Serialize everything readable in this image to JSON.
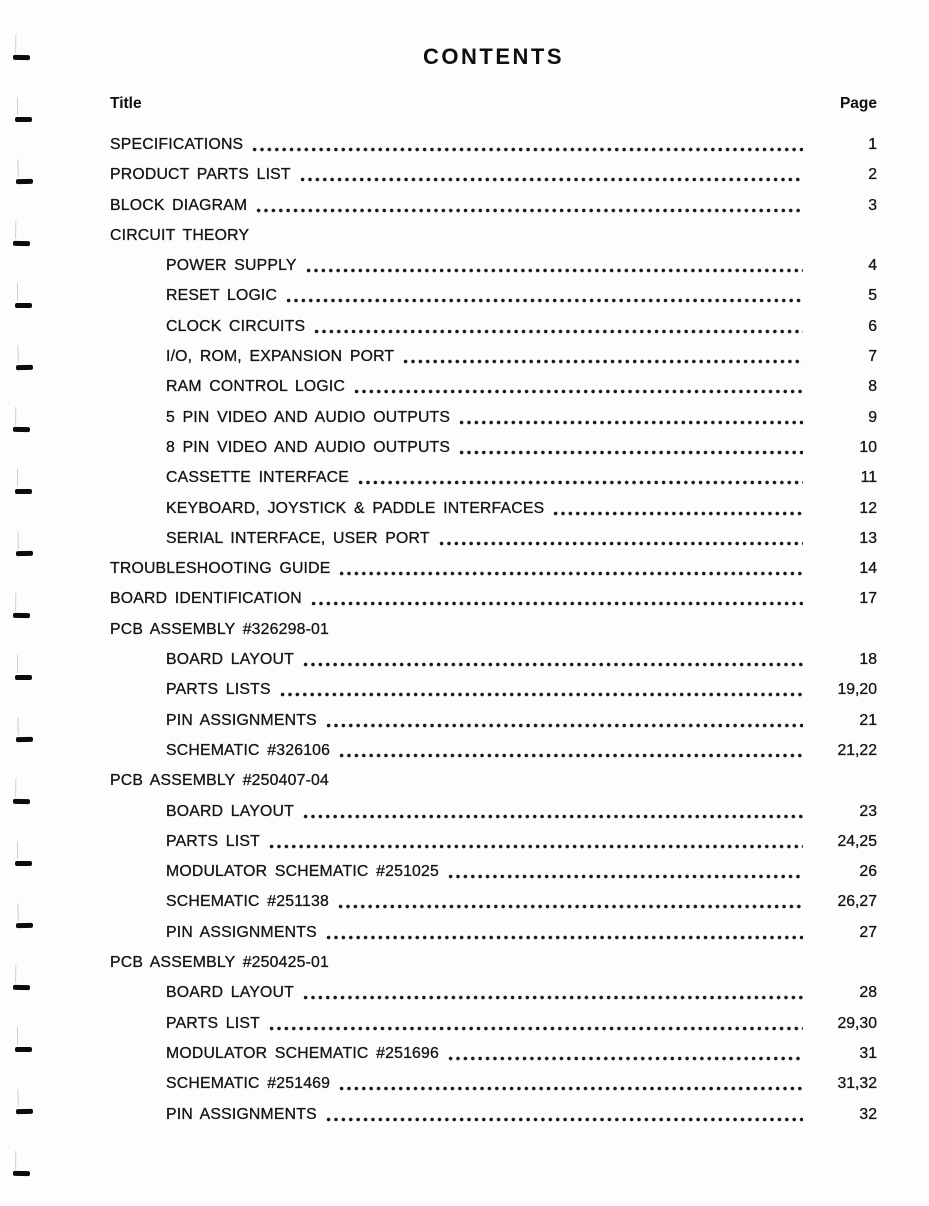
{
  "header": {
    "title": "CONTENTS",
    "columns": {
      "title": "Title",
      "page": "Page"
    }
  },
  "toc": {
    "entries": [
      {
        "label": "SPECIFICATIONS",
        "page": "1",
        "indent": 0
      },
      {
        "label": "PRODUCT PARTS LIST",
        "page": "2",
        "indent": 0
      },
      {
        "label": "BLOCK DIAGRAM",
        "page": "3",
        "indent": 0
      },
      {
        "label": "CIRCUIT THEORY",
        "page": "",
        "indent": 0
      },
      {
        "label": "POWER SUPPLY",
        "page": "4",
        "indent": 1
      },
      {
        "label": "RESET LOGIC",
        "page": "5",
        "indent": 1
      },
      {
        "label": "CLOCK CIRCUITS",
        "page": "6",
        "indent": 1
      },
      {
        "label": "I/O, ROM, EXPANSION PORT",
        "page": "7",
        "indent": 1
      },
      {
        "label": "RAM CONTROL LOGIC",
        "page": "8",
        "indent": 1
      },
      {
        "label": "5 PIN VIDEO AND AUDIO OUTPUTS",
        "page": "9",
        "indent": 1
      },
      {
        "label": "8 PIN VIDEO AND AUDIO OUTPUTS",
        "page": "10",
        "indent": 1
      },
      {
        "label": "CASSETTE INTERFACE",
        "page": "11",
        "indent": 1
      },
      {
        "label": "KEYBOARD, JOYSTICK & PADDLE INTERFACES",
        "page": "12",
        "indent": 1
      },
      {
        "label": "SERIAL INTERFACE, USER PORT",
        "page": "13",
        "indent": 1
      },
      {
        "label": "TROUBLESHOOTING GUIDE",
        "page": "14",
        "indent": 0
      },
      {
        "label": "BOARD IDENTIFICATION",
        "page": "17",
        "indent": 0
      },
      {
        "label": "PCB ASSEMBLY #326298-01",
        "page": "",
        "indent": 0
      },
      {
        "label": "BOARD LAYOUT",
        "page": "18",
        "indent": 1
      },
      {
        "label": "PARTS LISTS",
        "page": "19,20",
        "indent": 1
      },
      {
        "label": "PIN ASSIGNMENTS",
        "page": "21",
        "indent": 1
      },
      {
        "label": "SCHEMATIC #326106",
        "page": "21,22",
        "indent": 1
      },
      {
        "label": "PCB ASSEMBLY #250407-04",
        "page": "",
        "indent": 0
      },
      {
        "label": "BOARD LAYOUT",
        "page": "23",
        "indent": 1
      },
      {
        "label": "PARTS LIST",
        "page": "24,25",
        "indent": 1
      },
      {
        "label": "MODULATOR SCHEMATIC #251025",
        "page": "26",
        "indent": 1
      },
      {
        "label": "SCHEMATIC #251138",
        "page": "26,27",
        "indent": 1
      },
      {
        "label": "PIN ASSIGNMENTS",
        "page": "27",
        "indent": 1
      },
      {
        "label": "PCB ASSEMBLY #250425-01",
        "page": "",
        "indent": 0
      },
      {
        "label": "BOARD LAYOUT",
        "page": "28",
        "indent": 1
      },
      {
        "label": "PARTS LIST",
        "page": "29,30",
        "indent": 1
      },
      {
        "label": "MODULATOR SCHEMATIC #251696",
        "page": "31",
        "indent": 1
      },
      {
        "label": "SCHEMATIC #251469",
        "page": "31,32",
        "indent": 1
      },
      {
        "label": "PIN ASSIGNMENTS",
        "page": "32",
        "indent": 1
      }
    ]
  }
}
